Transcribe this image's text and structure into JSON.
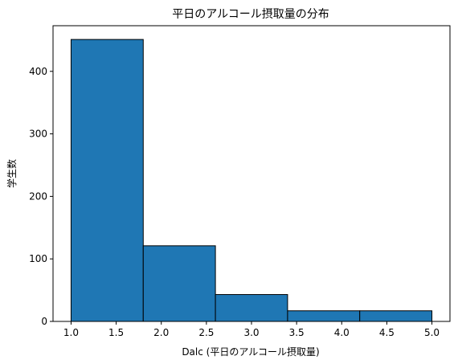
{
  "chart_data": {
    "type": "bar",
    "title": "平日のアルコール摂取量の分布",
    "xlabel": "Dalc (平日のアルコール摂取量)",
    "ylabel": "学生数",
    "bins": [
      {
        "start": 1.0,
        "end": 1.8,
        "value": 451
      },
      {
        "start": 1.8,
        "end": 2.6,
        "value": 121
      },
      {
        "start": 2.6,
        "end": 3.4,
        "value": 43
      },
      {
        "start": 3.4,
        "end": 4.2,
        "value": 17
      },
      {
        "start": 4.2,
        "end": 5.0,
        "value": 17
      }
    ],
    "xlim": [
      0.8,
      5.2
    ],
    "ylim": [
      0,
      473
    ],
    "xticks": [
      1.0,
      1.5,
      2.0,
      2.5,
      3.0,
      3.5,
      4.0,
      4.5,
      5.0
    ],
    "xtick_labels": [
      "1.0",
      "1.5",
      "2.0",
      "2.5",
      "3.0",
      "3.5",
      "4.0",
      "4.5",
      "5.0"
    ],
    "yticks": [
      0,
      100,
      200,
      300,
      400
    ],
    "ytick_labels": [
      "0",
      "100",
      "200",
      "300",
      "400"
    ],
    "bar_color": "#1f77b4",
    "edge_color": "#000000",
    "grid": false,
    "legend": "none"
  }
}
